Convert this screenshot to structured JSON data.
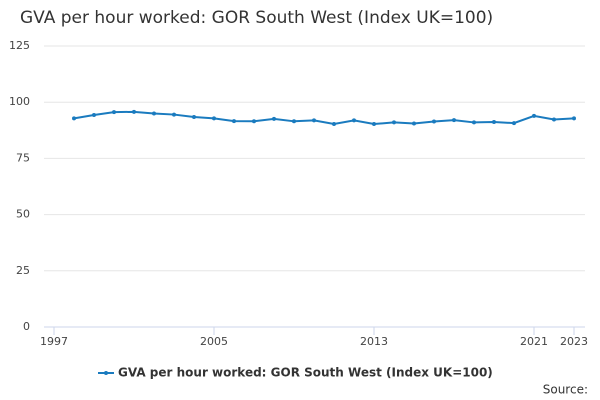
{
  "chart_data": {
    "type": "line",
    "title": "GVA per hour worked: GOR South West (Index UK=100)",
    "x": [
      1998,
      1999,
      2000,
      2001,
      2002,
      2003,
      2004,
      2005,
      2006,
      2007,
      2008,
      2009,
      2010,
      2011,
      2012,
      2013,
      2014,
      2015,
      2016,
      2017,
      2018,
      2019,
      2020,
      2021,
      2022,
      2023
    ],
    "series": [
      {
        "name": "GVA per hour worked: GOR South West (Index UK=100)",
        "color": "#1a7bbf",
        "values": [
          92.8,
          94.3,
          95.6,
          95.7,
          95.0,
          94.5,
          93.4,
          92.8,
          91.6,
          91.5,
          92.6,
          91.5,
          91.9,
          90.3,
          91.9,
          90.3,
          91.0,
          90.5,
          91.4,
          92.0,
          91.0,
          91.2,
          90.7,
          93.9,
          92.3,
          92.8
        ]
      }
    ],
    "xlim": [
      1997,
      2023
    ],
    "xticks": [
      1997,
      2005,
      2013,
      2021,
      2023
    ],
    "ylim": [
      0,
      125
    ],
    "yticks": [
      0,
      25,
      50,
      75,
      100,
      125
    ],
    "grid": true,
    "legend": "bottom",
    "source": "Source:"
  }
}
